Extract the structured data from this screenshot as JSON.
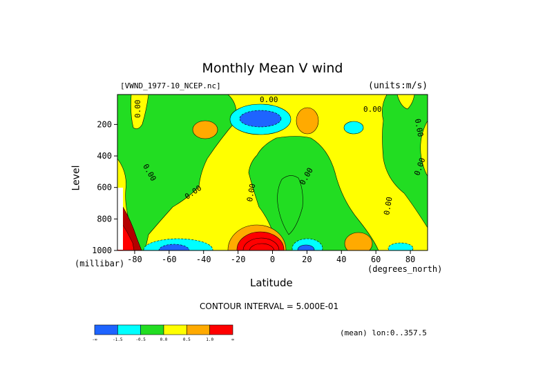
{
  "chart_data": {
    "type": "heatmap",
    "title": "Monthly Mean V wind",
    "source": "[VWND_1977-10_NCEP.nc]",
    "units": "(units:m/s)",
    "xlabel": "Latitude",
    "xunit": "(degrees_north)",
    "ylabel": "Level",
    "yunit": "(millibar)",
    "contour_interval": "CONTOUR INTERVAL = 5.000E-01",
    "mean_lon": "(mean) lon:0..357.5",
    "xlim": [
      -90,
      90
    ],
    "ylim": [
      1000,
      10
    ],
    "y_inverted": true,
    "x_ticks": [
      "-80",
      "-60",
      "-40",
      "-20",
      "0",
      "20",
      "40",
      "60",
      "80"
    ],
    "x_tick_values": [
      -80,
      -60,
      -40,
      -20,
      0,
      20,
      40,
      60,
      80
    ],
    "y_ticks": [
      "200",
      "400",
      "600",
      "800",
      "1000"
    ],
    "y_tick_values": [
      200,
      400,
      600,
      800,
      1000
    ],
    "contour_labels": [
      "0.00",
      "0.00",
      "0.00",
      "0.00",
      "0.00",
      "0.00",
      "0.00",
      "0.00",
      "0.00",
      "0.00"
    ],
    "colorbar": {
      "bins": [
        {
          "color": "#1e64ff",
          "label": "-1.5"
        },
        {
          "color": "#00ffff",
          "label": "-0.5"
        },
        {
          "color": "#22dd22",
          "label": "0.0"
        },
        {
          "color": "#ffff00",
          "label": "0.5"
        },
        {
          "color": "#ffaa00",
          "label": "1.0"
        },
        {
          "color": "#ff0000",
          "label": ""
        }
      ],
      "edge_labels": [
        "-∞",
        "∞"
      ],
      "inner_labels": [
        "-1.5",
        "-0.5",
        "0.0",
        "0.5",
        "1.0"
      ]
    },
    "grid": false,
    "legend_placement": "bottom-left"
  },
  "colors": {
    "blue": "#1e64ff",
    "cyan": "#00ffff",
    "green": "#22dd22",
    "yellow": "#ffff00",
    "orange": "#ffaa00",
    "red": "#ff0000",
    "darkred": "#b40000"
  }
}
